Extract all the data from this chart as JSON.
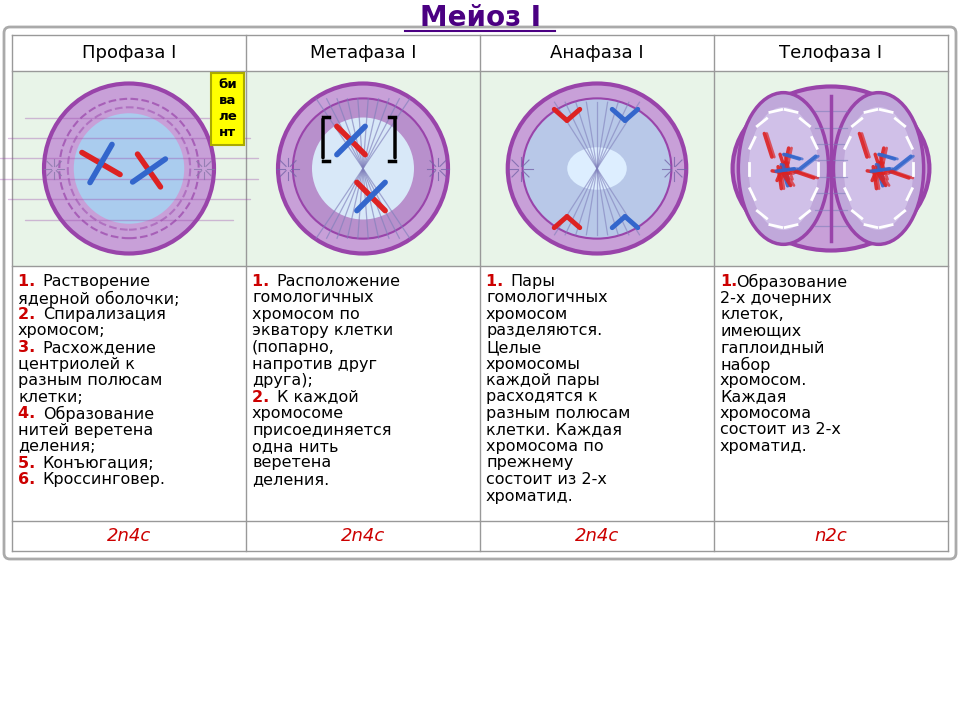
{
  "title": "Мейоз I",
  "col_headers": [
    "Профаза I",
    "Метафаза I",
    "Анафаза I",
    "Телофаза I"
  ],
  "bivalent_label": "би\nва\nле\nнт",
  "descriptions": [
    [
      [
        "1. ",
        "Растворение"
      ],
      [
        "ядерной оболочки;"
      ],
      [
        "2. ",
        "Спирализация"
      ],
      [
        "хромосом;"
      ],
      [
        "3. ",
        "Расхождение"
      ],
      [
        "центриолей к"
      ],
      [
        "разным полюсам"
      ],
      [
        "клетки;"
      ],
      [
        "4. ",
        "Образование"
      ],
      [
        "нитей веретена"
      ],
      [
        "деления;"
      ],
      [
        "5. ",
        "Конъюгация;"
      ],
      [
        "6. ",
        "Кроссинговер."
      ]
    ],
    [
      [
        "1. ",
        "Расположение"
      ],
      [
        "гомологичных"
      ],
      [
        "хромосом по"
      ],
      [
        "экватору клетки"
      ],
      [
        "(попарно,"
      ],
      [
        "напротив друг"
      ],
      [
        "друга);"
      ],
      [
        "2. ",
        "К каждой"
      ],
      [
        "хромосоме"
      ],
      [
        "присоединяется"
      ],
      [
        "одна нить"
      ],
      [
        "веретена"
      ],
      [
        "деления."
      ]
    ],
    [
      [
        "1. ",
        "Пары"
      ],
      [
        "гомологичных"
      ],
      [
        "хромосом"
      ],
      [
        "разделяются."
      ],
      [
        "Целые"
      ],
      [
        "хромосомы"
      ],
      [
        "каждой пары"
      ],
      [
        "расходятся к"
      ],
      [
        "разным полюсам"
      ],
      [
        "клетки. Каждая"
      ],
      [
        "хромосома по"
      ],
      [
        "прежнему"
      ],
      [
        "состоит из 2-х"
      ],
      [
        "хроматид."
      ]
    ],
    [
      [
        "1.",
        "Образование"
      ],
      [
        "2-х дочерних"
      ],
      [
        "клеток,"
      ],
      [
        "имеющих"
      ],
      [
        "гаплоидный"
      ],
      [
        "набор"
      ],
      [
        "хромосом."
      ],
      [
        "Каждая"
      ],
      [
        "хромосома"
      ],
      [
        "состоит из 2-х"
      ],
      [
        "хроматид."
      ]
    ]
  ],
  "bottom_labels": [
    "2n4c",
    "2n4c",
    "2n4c",
    "n2c"
  ],
  "bg_color": "#ffffff",
  "cell_bg": "#e8f4e8",
  "title_color": "#4b0082",
  "grid_color": "#999999",
  "num_color": "#cc0000",
  "bottom_color": "#cc0000",
  "cell_purple_outer": "#9955bb",
  "cell_purple_fill": "#c8a8e0",
  "cell_purple_inner": "#b090d0",
  "cell_blue_fill": "#c0d8f8",
  "spindle_color": "#8080bb",
  "chr_red": "#dd2222",
  "chr_blue": "#3366cc"
}
